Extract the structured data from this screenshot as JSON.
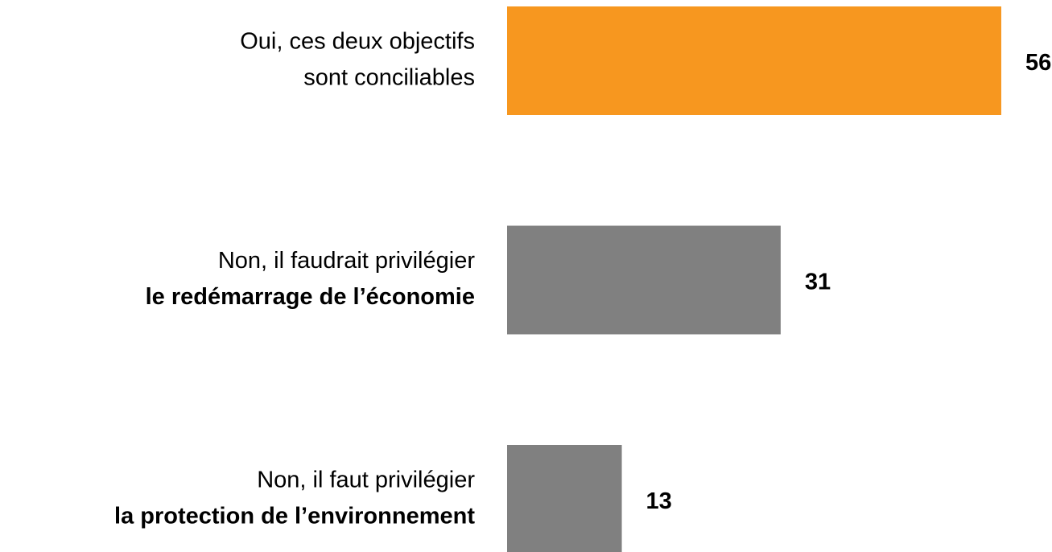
{
  "chart_data": {
    "type": "barh",
    "categories": [
      [
        "Oui, ces deux objectifs",
        "sont conciliables"
      ],
      [
        "Non, il faudrait privilégier",
        "le redémarrage de l’économie"
      ],
      [
        "Non, il faut privilégier",
        "la protection de l’environnement"
      ]
    ],
    "bold_lines": [
      [],
      [
        1
      ],
      [
        1
      ]
    ],
    "values": [
      56,
      31,
      13
    ],
    "colors": [
      "#f7971f",
      "#808080",
      "#808080"
    ]
  }
}
